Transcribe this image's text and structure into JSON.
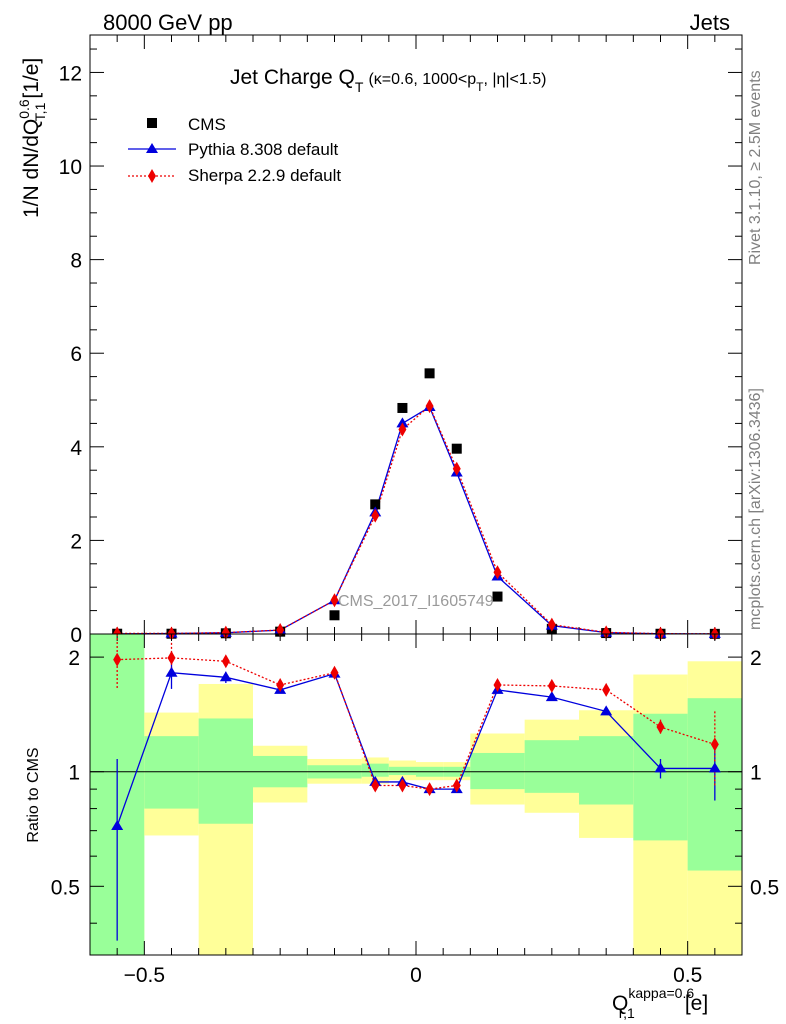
{
  "header": {
    "left": "8000 GeV pp",
    "right": "Jets"
  },
  "side_labels": {
    "rivet": "Rivet 3.1.10, ≥ 2.5M events",
    "mcplots": "mcplots.cern.ch [arXiv:1306.3436]"
  },
  "watermark": "CMS_2017_I1605749",
  "colors": {
    "cms": "#000000",
    "pythia": "#0000dd",
    "sherpa": "#ee0000",
    "band_inner": "#99ff99",
    "band_outer": "#ffff99"
  },
  "chart_data": [
    {
      "type": "scatter",
      "panel": "main",
      "title_main": "Jet Charge Q",
      "title_sub": "T",
      "title_rest": "(κ=0.6, 1000<p",
      "title_sub2": "T",
      "title_tail": ", |η|<1.5)",
      "ylabel": "1/N dN/dQ",
      "ylabel_sup": "0.6",
      "ylabel_sub": "T,1",
      "ylabel_unit": "[1/e]",
      "ylim": [
        0,
        12.8
      ],
      "yticks": [
        0,
        2,
        4,
        6,
        8,
        10,
        12
      ],
      "xlim": [
        -0.6,
        0.6
      ],
      "legend": [
        {
          "name": "CMS",
          "marker": "square"
        },
        {
          "name": "Pythia 8.308 default",
          "marker": "triangle"
        },
        {
          "name": "Sherpa 2.2.9 default",
          "marker": "diamond"
        }
      ],
      "x": [
        -0.55,
        -0.45,
        -0.35,
        -0.25,
        -0.15,
        -0.075,
        -0.025,
        0.025,
        0.075,
        0.15,
        0.25,
        0.35,
        0.45,
        0.55
      ],
      "series": [
        {
          "name": "CMS",
          "values": [
            0.006,
            0.006,
            0.015,
            0.05,
            0.4,
            2.77,
            4.83,
            5.57,
            3.96,
            0.8,
            0.11,
            0.02,
            0.005,
            0.003
          ]
        },
        {
          "name": "Pythia 8.308 default",
          "values": [
            0.004,
            0.011,
            0.027,
            0.083,
            0.72,
            2.6,
            4.5,
            4.85,
            3.45,
            1.23,
            0.18,
            0.03,
            0.005,
            0.003
          ]
        },
        {
          "name": "Sherpa 2.2.9 default",
          "values": [
            0.012,
            0.012,
            0.03,
            0.085,
            0.72,
            2.53,
            4.37,
            4.87,
            3.53,
            1.32,
            0.2,
            0.035,
            0.007,
            0.004
          ]
        }
      ]
    },
    {
      "type": "line",
      "panel": "ratio",
      "ylabel": "Ratio to CMS",
      "ylim": [
        0.33,
        2.3
      ],
      "yticks": [
        0.5,
        1,
        2
      ],
      "xlim": [
        -0.6,
        0.6
      ],
      "xticks": [
        -0.5,
        0,
        0.5
      ],
      "xlabel": "Q",
      "xlabel_sup": "kappa=0.6",
      "xlabel_sub": "T,1",
      "xlabel_unit": "[e]",
      "bins": [
        [
          -0.6,
          -0.5
        ],
        [
          -0.5,
          -0.4
        ],
        [
          -0.4,
          -0.3
        ],
        [
          -0.3,
          -0.2
        ],
        [
          -0.2,
          -0.1
        ],
        [
          -0.1,
          -0.05
        ],
        [
          -0.05,
          0
        ],
        [
          0,
          0.05
        ],
        [
          0.05,
          0.1
        ],
        [
          0.1,
          0.2
        ],
        [
          0.2,
          0.3
        ],
        [
          0.3,
          0.4
        ],
        [
          0.4,
          0.5
        ],
        [
          0.5,
          0.6
        ]
      ],
      "band_outer": [
        [
          0.3,
          2.3
        ],
        [
          0.68,
          1.43
        ],
        [
          0.3,
          1.7
        ],
        [
          0.83,
          1.17
        ],
        [
          0.93,
          1.08
        ],
        [
          0.93,
          1.09
        ],
        [
          0.95,
          1.07
        ],
        [
          0.95,
          1.06
        ],
        [
          0.95,
          1.06
        ],
        [
          0.82,
          1.26
        ],
        [
          0.78,
          1.37
        ],
        [
          0.67,
          1.45
        ],
        [
          0.3,
          1.8
        ],
        [
          0.3,
          1.95
        ]
      ],
      "band_inner": [
        [
          0.3,
          2.3
        ],
        [
          0.8,
          1.24
        ],
        [
          0.73,
          1.38
        ],
        [
          0.91,
          1.1
        ],
        [
          0.96,
          1.04
        ],
        [
          0.97,
          1.05
        ],
        [
          0.98,
          1.03
        ],
        [
          0.97,
          1.03
        ],
        [
          0.97,
          1.03
        ],
        [
          0.9,
          1.12
        ],
        [
          0.88,
          1.21
        ],
        [
          0.82,
          1.24
        ],
        [
          0.66,
          1.42
        ],
        [
          0.55,
          1.56
        ]
      ],
      "series": [
        {
          "name": "Pythia 8.308 default",
          "values": [
            0.72,
            1.82,
            1.77,
            1.64,
            1.81,
            0.94,
            0.94,
            0.9,
            0.9,
            1.64,
            1.57,
            1.44,
            1.02,
            1.02
          ],
          "err": [
            0.36,
            0.17,
            0.06,
            0.02,
            0.02,
            0.02,
            0.02,
            0.02,
            0.02,
            0.02,
            0.02,
            0.03,
            0.06,
            0.18
          ]
        },
        {
          "name": "Sherpa 2.2.9 default",
          "values": [
            1.97,
            1.99,
            1.95,
            1.69,
            1.82,
            0.92,
            0.92,
            0.9,
            0.92,
            1.69,
            1.68,
            1.64,
            1.31,
            1.18
          ],
          "err": [
            0.33,
            0.19,
            0.06,
            0.02,
            0.02,
            0.02,
            0.02,
            0.02,
            0.02,
            0.02,
            0.02,
            0.03,
            0.06,
            0.26
          ]
        }
      ]
    }
  ]
}
